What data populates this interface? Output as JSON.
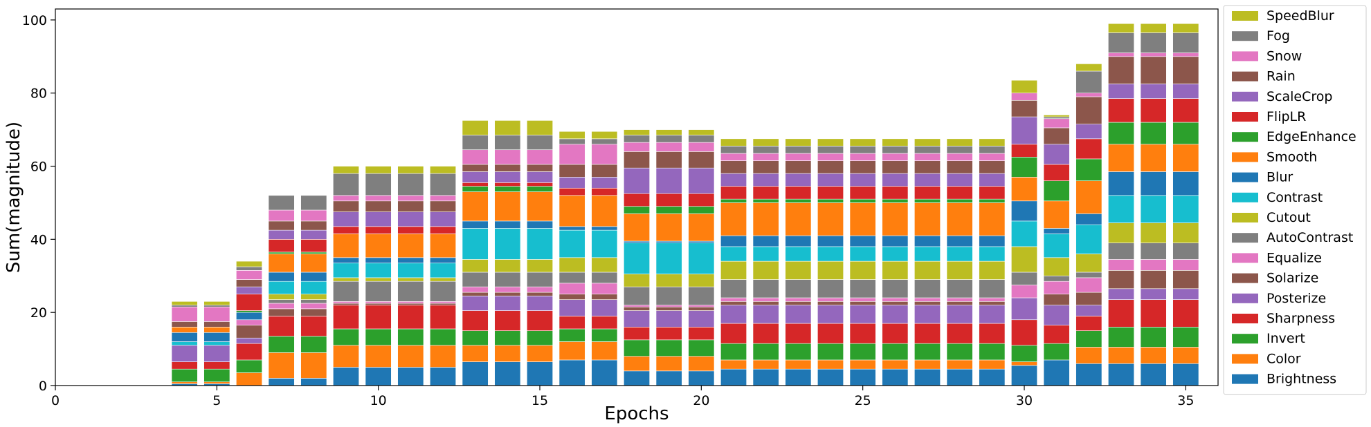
{
  "chart_data": {
    "type": "bar",
    "stacked": true,
    "xlabel": "Epochs",
    "ylabel": "Sum(magnitude)",
    "xlim": [
      0,
      36
    ],
    "ylim": [
      0,
      103
    ],
    "xticks": [
      0,
      5,
      10,
      15,
      20,
      25,
      30,
      35
    ],
    "yticks": [
      0,
      20,
      40,
      60,
      80,
      100
    ],
    "grid": false,
    "legend_position": "right",
    "x": [
      4,
      5,
      6,
      7,
      8,
      9,
      10,
      11,
      12,
      13,
      14,
      15,
      16,
      17,
      18,
      19,
      20,
      21,
      22,
      23,
      24,
      25,
      26,
      27,
      28,
      29,
      30,
      31,
      32,
      33,
      34,
      35
    ],
    "series": [
      {
        "name": "Brightness",
        "color": "#1f77b4",
        "values": [
          0.5,
          0.5,
          0,
          2,
          2,
          5,
          5,
          5,
          5,
          6.5,
          6.5,
          6.5,
          7,
          7,
          4,
          4,
          4,
          4.5,
          4.5,
          4.5,
          4.5,
          4.5,
          4.5,
          4.5,
          4.5,
          4.5,
          5.5,
          7,
          6,
          6,
          6,
          6
        ]
      },
      {
        "name": "Color",
        "color": "#ff7f0e",
        "values": [
          0.5,
          0.5,
          3.5,
          7,
          7,
          6,
          6,
          6,
          6,
          4.5,
          4.5,
          4.5,
          5,
          5,
          4,
          4,
          4,
          2.5,
          2.5,
          2.5,
          2.5,
          2.5,
          2.5,
          2.5,
          2.5,
          2.5,
          1,
          0,
          4.5,
          4.5,
          4.5,
          4.5
        ]
      },
      {
        "name": "Invert",
        "color": "#2ca02c",
        "values": [
          3.5,
          3.5,
          3.5,
          4.5,
          4.5,
          4.5,
          4.5,
          4.5,
          4.5,
          4,
          4,
          4,
          3.5,
          3.5,
          4.5,
          4.5,
          4.5,
          4.5,
          4.5,
          4.5,
          4.5,
          4.5,
          4.5,
          4.5,
          4.5,
          4.5,
          4.5,
          4.5,
          4.5,
          5.5,
          5.5,
          5.5
        ]
      },
      {
        "name": "Sharpness",
        "color": "#d62728",
        "values": [
          2,
          2,
          4.5,
          5.5,
          5.5,
          6.5,
          6.5,
          6.5,
          6.5,
          5.5,
          5.5,
          5.5,
          3.5,
          3.5,
          3.5,
          3.5,
          3.5,
          5.5,
          5.5,
          5.5,
          5.5,
          5.5,
          5.5,
          5.5,
          5.5,
          5.5,
          7,
          5,
          4,
          7.5,
          7.5,
          7.5
        ]
      },
      {
        "name": "Posterize",
        "color": "#9467bd",
        "values": [
          4.5,
          4.5,
          1.5,
          0,
          0,
          0,
          0,
          0,
          0,
          4,
          4,
          4,
          4.5,
          4.5,
          4.5,
          4.5,
          4.5,
          5,
          5,
          5,
          5,
          5,
          5,
          5,
          5,
          5,
          6,
          5.5,
          3,
          3,
          3,
          3
        ]
      },
      {
        "name": "Solarize",
        "color": "#8c564b",
        "values": [
          0,
          0,
          3.5,
          2,
          2,
          0.5,
          0.5,
          0.5,
          0.5,
          1,
          1,
          1,
          1.5,
          1.5,
          1,
          1,
          1,
          1,
          1,
          1,
          1,
          1,
          1,
          1,
          1,
          1,
          0,
          3,
          3.5,
          5,
          5,
          5
        ]
      },
      {
        "name": "Equalize",
        "color": "#e377c2",
        "values": [
          0,
          0,
          1.5,
          1.5,
          1.5,
          0.5,
          0.5,
          0.5,
          0.5,
          1.5,
          1.5,
          1.5,
          3,
          3,
          0.5,
          0.5,
          0.5,
          1,
          1,
          1,
          1,
          1,
          1,
          1,
          1,
          1,
          3.5,
          3.5,
          4,
          3,
          3,
          3
        ]
      },
      {
        "name": "AutoContrast",
        "color": "#7f7f7f",
        "values": [
          0,
          0,
          0,
          1,
          1,
          5.5,
          5.5,
          5.5,
          5.5,
          4,
          4,
          4,
          3,
          3,
          5,
          5,
          5,
          5,
          5,
          5,
          5,
          5,
          5,
          5,
          5,
          5,
          3.5,
          1.5,
          1.5,
          4.5,
          4.5,
          4.5
        ]
      },
      {
        "name": "Cutout",
        "color": "#bcbd22",
        "values": [
          0,
          0,
          0,
          1.5,
          1.5,
          1,
          1,
          1,
          1,
          3.5,
          3.5,
          3.5,
          4,
          4,
          3.5,
          3.5,
          3.5,
          5,
          5,
          5,
          5,
          5,
          5,
          5,
          5,
          5,
          7,
          5,
          5,
          5.5,
          5.5,
          5.5
        ]
      },
      {
        "name": "Contrast",
        "color": "#17becf",
        "values": [
          1,
          1,
          0,
          3.5,
          3.5,
          4,
          4,
          4,
          4,
          8.5,
          8.5,
          8.5,
          7.5,
          7.5,
          8.5,
          8.5,
          8.5,
          4,
          4,
          4,
          4,
          4,
          4,
          4,
          4,
          4,
          7,
          6.5,
          8,
          7.5,
          7.5,
          7.5
        ]
      },
      {
        "name": "Blur",
        "color": "#1f77b4",
        "values": [
          2.5,
          2.5,
          2,
          2.5,
          2.5,
          1.5,
          1.5,
          1.5,
          1.5,
          2,
          2,
          2,
          1,
          1,
          0.5,
          0.5,
          0.5,
          3,
          3,
          3,
          3,
          3,
          3,
          3,
          3,
          3,
          5.5,
          1.5,
          3,
          6.5,
          6.5,
          6.5
        ]
      },
      {
        "name": "Smooth",
        "color": "#ff7f0e",
        "values": [
          1.5,
          1.5,
          0,
          5,
          5,
          6.5,
          6.5,
          6.5,
          6.5,
          8,
          8,
          8,
          8.5,
          8.5,
          7.5,
          7.5,
          7.5,
          9,
          9,
          9,
          9,
          9,
          9,
          9,
          9,
          9,
          6.5,
          7.5,
          9,
          7.5,
          7.5,
          7.5
        ]
      },
      {
        "name": "EdgeEnhance",
        "color": "#2ca02c",
        "values": [
          0,
          0,
          0.5,
          0.5,
          0.5,
          0,
          0,
          0,
          0,
          1.5,
          1.5,
          1.5,
          0,
          0,
          2,
          2,
          2,
          1,
          1,
          1,
          1,
          1,
          1,
          1,
          1,
          1,
          5.5,
          5.5,
          6,
          6,
          6,
          6
        ]
      },
      {
        "name": "FlipLR",
        "color": "#d62728",
        "values": [
          0,
          0,
          4.5,
          3.5,
          3.5,
          2,
          2,
          2,
          2,
          1,
          1,
          1,
          2,
          2,
          3.5,
          3.5,
          3.5,
          3.5,
          3.5,
          3.5,
          3.5,
          3.5,
          3.5,
          3.5,
          3.5,
          3.5,
          3.5,
          4.5,
          5.5,
          6.5,
          6.5,
          6.5
        ]
      },
      {
        "name": "ScaleCrop",
        "color": "#9467bd",
        "values": [
          0,
          0,
          2,
          2.5,
          2.5,
          4,
          4,
          4,
          4,
          3,
          3,
          3,
          3,
          3,
          7,
          7,
          7,
          3.5,
          3.5,
          3.5,
          3.5,
          3.5,
          3.5,
          3.5,
          3.5,
          3.5,
          7.5,
          5.5,
          4,
          4,
          4,
          4
        ]
      },
      {
        "name": "Rain",
        "color": "#8c564b",
        "values": [
          1.5,
          1.5,
          2,
          2.5,
          2.5,
          3,
          3,
          3,
          3,
          2,
          2,
          2,
          3.5,
          3.5,
          4.5,
          4.5,
          4.5,
          3.5,
          3.5,
          3.5,
          3.5,
          3.5,
          3.5,
          3.5,
          3.5,
          3.5,
          4.5,
          4.5,
          7.5,
          7.5,
          7.5,
          7.5
        ]
      },
      {
        "name": "Snow",
        "color": "#e377c2",
        "values": [
          4,
          4,
          2.5,
          3,
          3,
          1.5,
          1.5,
          1.5,
          1.5,
          4,
          4,
          4,
          5.5,
          5.5,
          2.5,
          2.5,
          2.5,
          2,
          2,
          2,
          2,
          2,
          2,
          2,
          2,
          2,
          2,
          2.5,
          1,
          1,
          1,
          1
        ]
      },
      {
        "name": "Fog",
        "color": "#7f7f7f",
        "values": [
          0.5,
          0.5,
          1,
          4,
          4,
          6,
          6,
          6,
          6,
          4,
          4,
          4,
          1.5,
          1.5,
          2,
          2,
          2,
          2,
          2,
          2,
          2,
          2,
          2,
          2,
          2,
          2,
          0,
          0.5,
          6,
          5.5,
          5.5,
          5.5
        ]
      },
      {
        "name": "SpeedBlur",
        "color": "#bcbd22",
        "values": [
          1,
          1,
          1.5,
          0,
          0,
          2,
          2,
          2,
          2,
          4,
          4,
          4,
          2,
          2,
          1.5,
          1.5,
          1.5,
          2,
          2,
          2,
          2,
          2,
          2,
          2,
          2,
          2,
          3.5,
          0.5,
          2,
          2.5,
          2.5,
          2.5
        ]
      }
    ]
  }
}
